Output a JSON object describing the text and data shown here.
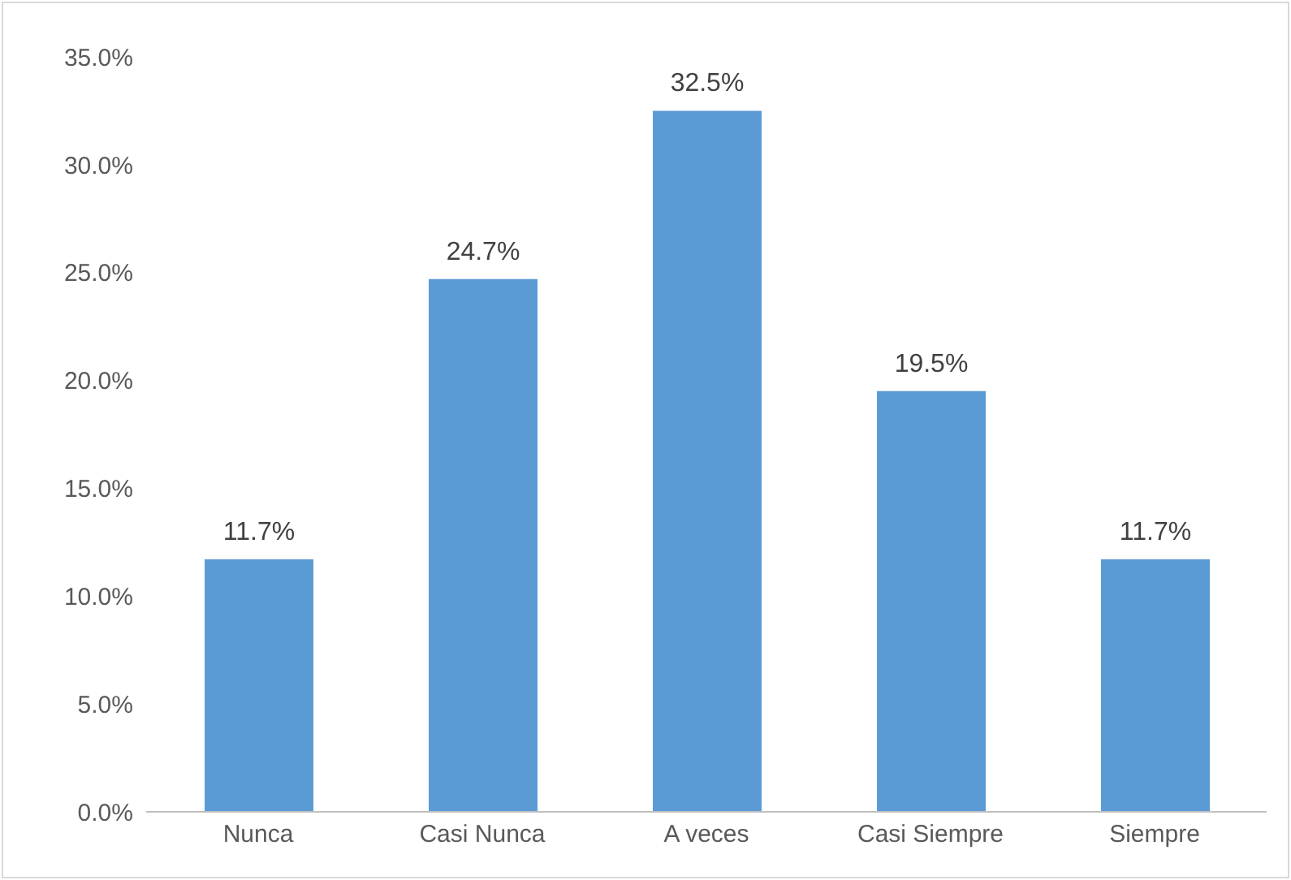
{
  "chart_data": {
    "type": "bar",
    "categories": [
      "Nunca",
      "Casi Nunca",
      "A veces",
      "Casi Siempre",
      "Siempre"
    ],
    "values": [
      11.7,
      24.7,
      32.5,
      19.5,
      11.7
    ],
    "value_labels": [
      "11.7%",
      "24.7%",
      "32.5%",
      "19.5%",
      "11.7%"
    ],
    "color": "#5b9bd5",
    "ylim": [
      0,
      35
    ],
    "yticks": [
      {
        "value": 0,
        "label": "0.0%"
      },
      {
        "value": 5,
        "label": "5.0%"
      },
      {
        "value": 10,
        "label": "10.0%"
      },
      {
        "value": 15,
        "label": "15.0%"
      },
      {
        "value": 20,
        "label": "20.0%"
      },
      {
        "value": 25,
        "label": "25.0%"
      },
      {
        "value": 30,
        "label": "30.0%"
      },
      {
        "value": 35,
        "label": "35.0%"
      }
    ],
    "grid": false,
    "legend": false
  }
}
